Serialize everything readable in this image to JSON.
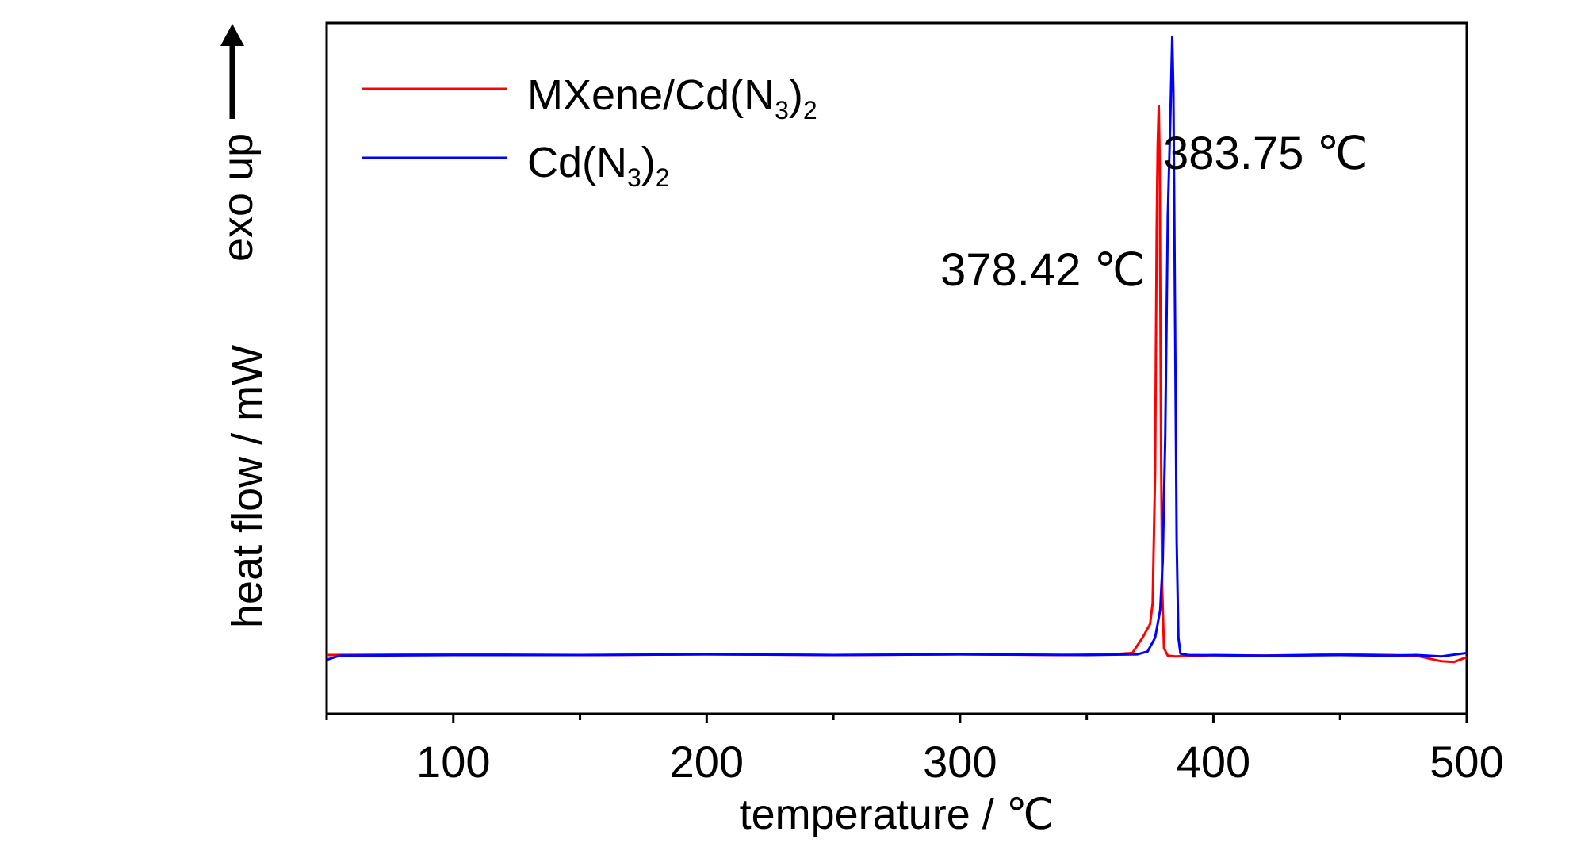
{
  "chart_data": {
    "type": "line",
    "xlabel": "temperature / ℃",
    "ylabel": "heat flow / mW",
    "ylabel_note": "exo up",
    "xlim": [
      50,
      500
    ],
    "ylim": [
      0,
      100
    ],
    "x_ticks": [
      100,
      200,
      300,
      400,
      500
    ],
    "grid": false,
    "legend_position": "top-left",
    "series": [
      {
        "name": "MXene/Cd(N3)2",
        "color": "#ff0000",
        "points": [
          [
            50,
            8.5
          ],
          [
            100,
            8.6
          ],
          [
            150,
            8.5
          ],
          [
            200,
            8.6
          ],
          [
            250,
            8.5
          ],
          [
            300,
            8.6
          ],
          [
            340,
            8.5
          ],
          [
            360,
            8.6
          ],
          [
            368,
            8.8
          ],
          [
            372,
            11
          ],
          [
            375,
            13
          ],
          [
            376,
            16
          ],
          [
            377,
            35
          ],
          [
            377.6,
            70
          ],
          [
            378.0,
            82
          ],
          [
            378.42,
            88
          ],
          [
            378.8,
            80
          ],
          [
            379.3,
            40
          ],
          [
            379.8,
            18
          ],
          [
            380.5,
            9.5
          ],
          [
            382,
            8.4
          ],
          [
            385,
            8.3
          ],
          [
            400,
            8.5
          ],
          [
            420,
            8.4
          ],
          [
            450,
            8.6
          ],
          [
            470,
            8.5
          ],
          [
            480,
            8.4
          ],
          [
            490,
            7.6
          ],
          [
            495,
            7.5
          ],
          [
            500,
            8.2
          ]
        ]
      },
      {
        "name": "Cd(N3)2",
        "color": "#0000ff",
        "points": [
          [
            50,
            7.8
          ],
          [
            55,
            8.4
          ],
          [
            100,
            8.5
          ],
          [
            150,
            8.5
          ],
          [
            200,
            8.6
          ],
          [
            250,
            8.5
          ],
          [
            300,
            8.6
          ],
          [
            350,
            8.5
          ],
          [
            370,
            8.6
          ],
          [
            374,
            9
          ],
          [
            377,
            11
          ],
          [
            379,
            15
          ],
          [
            380,
            22
          ],
          [
            381,
            40
          ],
          [
            382,
            72
          ],
          [
            383,
            86
          ],
          [
            383.75,
            98
          ],
          [
            384.2,
            90
          ],
          [
            384.8,
            60
          ],
          [
            385.5,
            25
          ],
          [
            386.2,
            11
          ],
          [
            387,
            8.7
          ],
          [
            390,
            8.5
          ],
          [
            420,
            8.4
          ],
          [
            450,
            8.5
          ],
          [
            470,
            8.4
          ],
          [
            480,
            8.5
          ],
          [
            490,
            8.3
          ],
          [
            500,
            8.8
          ]
        ]
      }
    ],
    "legend": [
      {
        "label_main": "MXene/Cd(N",
        "label_sub1": "3",
        "label_mid": ")",
        "label_sub2": "2",
        "color": "#ff0000"
      },
      {
        "label_main": "Cd(N",
        "label_sub1": "3",
        "label_mid": ")",
        "label_sub2": "2",
        "color": "#0000ff"
      }
    ],
    "annotations": [
      {
        "text": "378.42 ℃",
        "x": 378.42,
        "series": "MXene/Cd(N3)2"
      },
      {
        "text": "383.75 ℃",
        "x": 383.75,
        "series": "Cd(N3)2"
      }
    ]
  }
}
